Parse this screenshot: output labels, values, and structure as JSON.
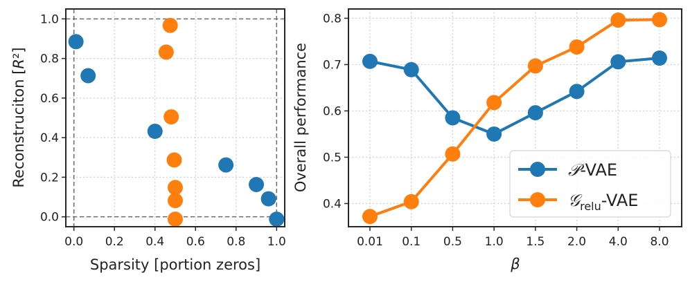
{
  "chart_data": [
    {
      "type": "scatter",
      "title": "",
      "xlabel": "Sparsity  [portion zeros]",
      "ylabel": "Reconstruciton  [R²]",
      "xlim": [
        -0.04,
        1.04
      ],
      "ylim": [
        -0.05,
        1.05
      ],
      "xticks": [
        0.0,
        0.2,
        0.4,
        0.6,
        0.8,
        1.0
      ],
      "xtick_labels": [
        "0.0",
        "0.2",
        "0.4",
        "0.6",
        "0.8",
        "1.0"
      ],
      "yticks": [
        0.0,
        0.2,
        0.4,
        0.6,
        0.8,
        1.0
      ],
      "ytick_labels": [
        "0.0",
        "0.2",
        "0.4",
        "0.6",
        "0.8",
        "1.0"
      ],
      "grid": true,
      "reference_lines": {
        "x": [
          0.0,
          1.0
        ],
        "y": [
          0.0,
          1.0
        ],
        "style": "dashed"
      },
      "series": [
        {
          "name": "P-VAE",
          "color": "#1f77b4",
          "points": [
            {
              "x": 0.01,
              "y": 0.885
            },
            {
              "x": 0.07,
              "y": 0.713
            },
            {
              "x": 0.4,
              "y": 0.432
            },
            {
              "x": 0.75,
              "y": 0.262
            },
            {
              "x": 0.9,
              "y": 0.163
            },
            {
              "x": 0.96,
              "y": 0.091
            },
            {
              "x": 1.0,
              "y": -0.012
            }
          ]
        },
        {
          "name": "G_relu-VAE",
          "color": "#ff7f0e",
          "points": [
            {
              "x": 0.475,
              "y": 0.967
            },
            {
              "x": 0.455,
              "y": 0.832
            },
            {
              "x": 0.48,
              "y": 0.505
            },
            {
              "x": 0.495,
              "y": 0.287
            },
            {
              "x": 0.5,
              "y": 0.148
            },
            {
              "x": 0.5,
              "y": 0.082
            },
            {
              "x": 0.5,
              "y": -0.012
            }
          ]
        }
      ]
    },
    {
      "type": "line",
      "title": "",
      "xlabel": "β",
      "ylabel": "Overall performance",
      "categories": [
        "0.01",
        "0.1",
        "0.5",
        "1.0",
        "1.5",
        "2.0",
        "4.0",
        "8.0"
      ],
      "ylim": [
        0.35,
        0.82
      ],
      "yticks": [
        0.4,
        0.5,
        0.6,
        0.7,
        0.8
      ],
      "ytick_labels": [
        "0.4",
        "0.5",
        "0.6",
        "0.7",
        "0.8"
      ],
      "grid": true,
      "legend_position": "bottom-right",
      "series": [
        {
          "name": "P-VAE",
          "legend_main": "𝒫",
          "legend_rest": "-VAE",
          "color": "#1f77b4",
          "values": [
            0.707,
            0.689,
            0.585,
            0.55,
            0.596,
            0.642,
            0.706,
            0.714
          ]
        },
        {
          "name": "G_relu-VAE",
          "legend_main": "𝒢",
          "legend_sub": "relu",
          "legend_rest": "-VAE",
          "color": "#ff7f0e",
          "values": [
            0.372,
            0.404,
            0.507,
            0.618,
            0.697,
            0.738,
            0.796,
            0.797
          ]
        }
      ]
    }
  ]
}
